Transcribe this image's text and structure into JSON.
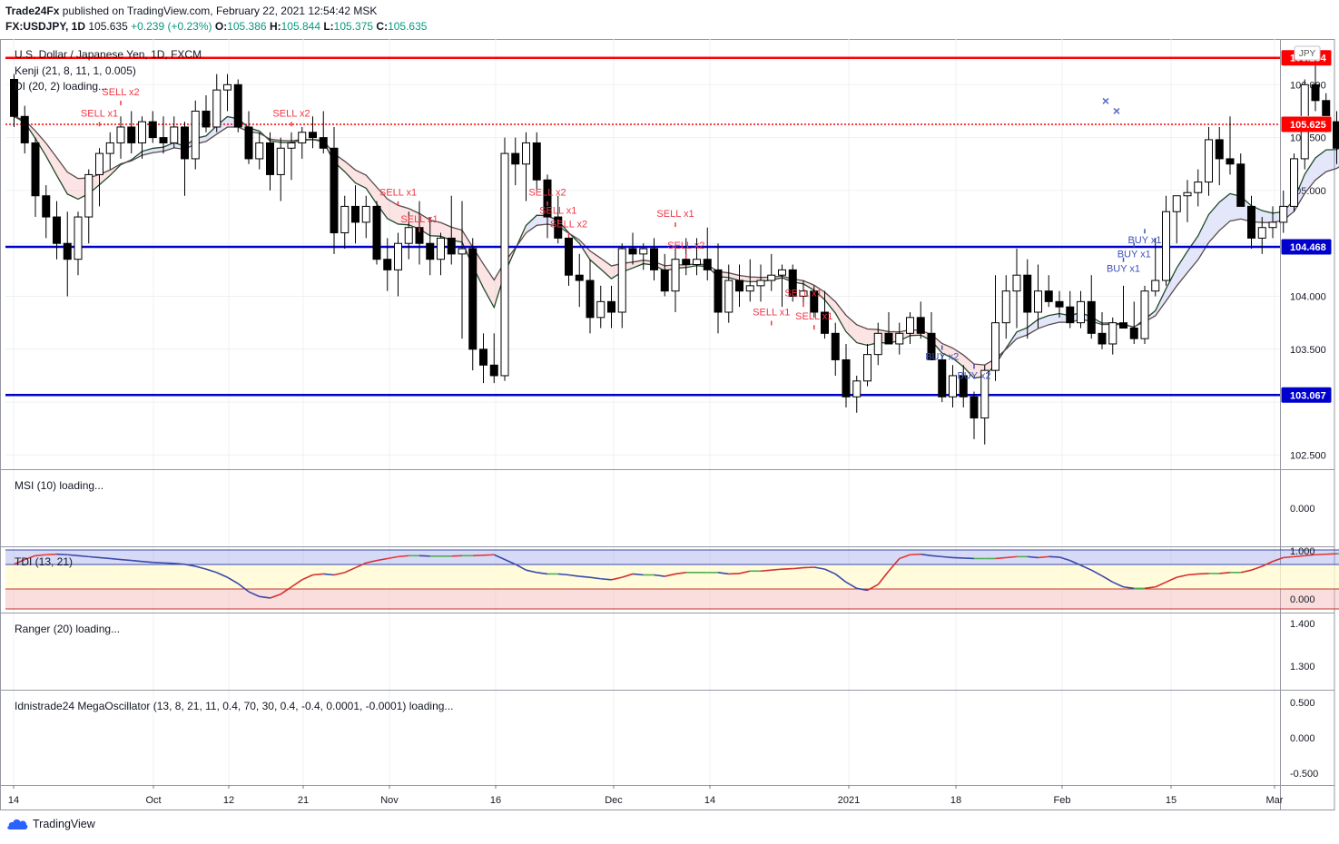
{
  "header": {
    "author": "Trade24Fx",
    "published": "published on TradingView.com, February 22, 2021 12:54:42 MSK",
    "symbol": "FX:USDJPY, 1D",
    "last": "105.635",
    "change": "+0.239 (+0.23%)",
    "o_label": "O:",
    "o": "105.386",
    "h_label": "H:",
    "h": "105.844",
    "l_label": "L:",
    "l": "105.375",
    "c_label": "C:",
    "c": "105.635"
  },
  "footer": {
    "brand": "TradingView"
  },
  "colors": {
    "up": "#ffffff",
    "down": "#000000",
    "grid": "#eef0f3",
    "red_line": "#ff0000",
    "blue_line": "#0000cd",
    "sell_text": "#f23645",
    "buy_text": "#3f51b5"
  },
  "chart_data": [
    {
      "type": "candlestick",
      "title": "U.S. Dollar / Japanese Yen, 1D, FXCM",
      "currency_badge": "JPY",
      "indicators": [
        "Kenji (21, 8, 11, 1, 0.005)",
        "DI (20, 2) loading..."
      ],
      "ylim": [
        102.35,
        106.35
      ],
      "yticks": [
        "106.000",
        "105.500",
        "105.000",
        "104.000",
        "103.500",
        "102.500"
      ],
      "price_labels": [
        {
          "value": 106.254,
          "text": "106.254",
          "color": "#ff0000"
        },
        {
          "value": 105.635,
          "text": "105.635",
          "color": "#ffffff"
        },
        {
          "value": 105.625,
          "text": "105.625",
          "color": "#ff0000"
        },
        {
          "value": 104.468,
          "text": "104.468",
          "color": "#0000cd"
        },
        {
          "value": 103.067,
          "text": "103.067",
          "color": "#0000cd"
        }
      ],
      "hlines": [
        {
          "value": 106.254,
          "color": "#ff0000",
          "style": "solid"
        },
        {
          "value": 105.625,
          "color": "#ff0000",
          "style": "dotted"
        },
        {
          "value": 104.468,
          "color": "#0000cd",
          "style": "solid"
        },
        {
          "value": 103.067,
          "color": "#0000cd",
          "style": "solid"
        }
      ],
      "xticks": [
        "14",
        "Oct",
        "12",
        "21",
        "Nov",
        "16",
        "Dec",
        "14",
        "2021",
        "18",
        "Feb",
        "15",
        "Mar"
      ],
      "ohlc": [
        [
          106.05,
          106.1,
          105.6,
          105.7
        ],
        [
          105.7,
          105.8,
          105.35,
          105.45
        ],
        [
          105.45,
          105.5,
          104.75,
          104.95
        ],
        [
          104.95,
          105.05,
          104.55,
          104.75
        ],
        [
          104.75,
          104.9,
          104.35,
          104.5
        ],
        [
          104.5,
          104.8,
          104.0,
          104.35
        ],
        [
          104.35,
          104.8,
          104.2,
          104.75
        ],
        [
          104.75,
          105.2,
          104.5,
          105.15
        ],
        [
          105.15,
          105.4,
          104.85,
          105.35
        ],
        [
          105.35,
          105.55,
          105.2,
          105.45
        ],
        [
          105.45,
          105.7,
          105.3,
          105.6
        ],
        [
          105.6,
          105.75,
          105.35,
          105.45
        ],
        [
          105.45,
          105.7,
          105.3,
          105.65
        ],
        [
          105.65,
          105.75,
          105.45,
          105.5
        ],
        [
          105.5,
          105.7,
          105.35,
          105.45
        ],
        [
          105.45,
          105.7,
          105.4,
          105.6
        ],
        [
          105.6,
          105.65,
          104.95,
          105.3
        ],
        [
          105.3,
          105.85,
          105.2,
          105.75
        ],
        [
          105.75,
          105.9,
          105.55,
          105.6
        ],
        [
          105.6,
          106.1,
          105.55,
          105.95
        ],
        [
          105.95,
          106.1,
          105.75,
          106.0
        ],
        [
          106.0,
          106.05,
          105.55,
          105.6
        ],
        [
          105.6,
          105.75,
          105.25,
          105.3
        ],
        [
          105.3,
          105.55,
          105.2,
          105.45
        ],
        [
          105.45,
          105.55,
          105.0,
          105.15
        ],
        [
          105.15,
          105.5,
          104.9,
          105.4
        ],
        [
          105.4,
          105.55,
          105.1,
          105.45
        ],
        [
          105.45,
          105.6,
          105.3,
          105.55
        ],
        [
          105.55,
          105.7,
          105.4,
          105.5
        ],
        [
          105.5,
          105.75,
          105.35,
          105.4
        ],
        [
          105.4,
          105.6,
          104.4,
          104.6
        ],
        [
          104.6,
          104.95,
          104.45,
          104.85
        ],
        [
          104.85,
          105.05,
          104.5,
          104.7
        ],
        [
          104.7,
          104.95,
          104.55,
          104.85
        ],
        [
          104.85,
          104.9,
          104.3,
          104.35
        ],
        [
          104.35,
          104.55,
          104.05,
          104.25
        ],
        [
          104.25,
          104.6,
          104.0,
          104.5
        ],
        [
          104.5,
          104.8,
          104.35,
          104.65
        ],
        [
          104.65,
          104.9,
          104.3,
          104.5
        ],
        [
          104.5,
          104.75,
          104.2,
          104.35
        ],
        [
          104.35,
          104.6,
          104.2,
          104.55
        ],
        [
          104.55,
          104.95,
          104.3,
          104.4
        ],
        [
          104.4,
          104.9,
          103.6,
          104.45
        ],
        [
          104.45,
          104.55,
          103.3,
          103.5
        ],
        [
          103.5,
          103.65,
          103.18,
          103.35
        ],
        [
          103.35,
          103.65,
          103.18,
          103.25
        ],
        [
          103.25,
          105.5,
          103.2,
          105.35
        ],
        [
          105.35,
          105.5,
          105.05,
          105.25
        ],
        [
          105.25,
          105.55,
          104.9,
          105.45
        ],
        [
          105.45,
          105.55,
          105.0,
          105.1
        ],
        [
          105.1,
          105.15,
          104.55,
          104.75
        ],
        [
          104.75,
          104.95,
          104.5,
          104.55
        ],
        [
          104.55,
          104.6,
          104.1,
          104.2
        ],
        [
          104.2,
          104.4,
          103.9,
          104.15
        ],
        [
          104.15,
          104.35,
          103.65,
          103.8
        ],
        [
          103.8,
          104.1,
          103.7,
          103.95
        ],
        [
          103.95,
          104.1,
          103.7,
          103.85
        ],
        [
          103.85,
          104.5,
          103.7,
          104.45
        ],
        [
          104.45,
          104.6,
          104.3,
          104.4
        ],
        [
          104.4,
          104.5,
          104.25,
          104.45
        ],
        [
          104.45,
          104.55,
          104.15,
          104.25
        ],
        [
          104.25,
          104.4,
          104.0,
          104.05
        ],
        [
          104.05,
          104.45,
          103.85,
          104.35
        ],
        [
          104.35,
          104.55,
          104.2,
          104.3
        ],
        [
          104.3,
          104.55,
          104.2,
          104.35
        ],
        [
          104.35,
          104.65,
          104.15,
          104.25
        ],
        [
          104.25,
          104.5,
          103.65,
          103.85
        ],
        [
          103.85,
          104.3,
          103.75,
          104.15
        ],
        [
          104.15,
          104.3,
          103.9,
          104.05
        ],
        [
          104.05,
          104.35,
          103.95,
          104.1
        ],
        [
          104.1,
          104.3,
          103.95,
          104.15
        ],
        [
          104.15,
          104.4,
          104.05,
          104.2
        ],
        [
          104.2,
          104.3,
          103.9,
          104.25
        ],
        [
          104.25,
          104.3,
          103.95,
          104.0
        ],
        [
          104.0,
          104.15,
          103.9,
          104.05
        ],
        [
          104.05,
          104.1,
          103.8,
          103.85
        ],
        [
          103.85,
          104.05,
          103.6,
          103.65
        ],
        [
          103.65,
          103.75,
          103.25,
          103.4
        ],
        [
          103.4,
          103.55,
          102.95,
          103.05
        ],
        [
          103.05,
          103.25,
          102.9,
          103.2
        ],
        [
          103.2,
          103.55,
          103.15,
          103.45
        ],
        [
          103.45,
          103.75,
          103.35,
          103.65
        ],
        [
          103.65,
          103.85,
          103.55,
          103.55
        ],
        [
          103.55,
          103.75,
          103.45,
          103.65
        ],
        [
          103.65,
          103.85,
          103.55,
          103.8
        ],
        [
          103.8,
          103.95,
          103.6,
          103.65
        ],
        [
          103.65,
          103.85,
          103.4,
          103.4
        ],
        [
          103.4,
          103.45,
          103.0,
          103.05
        ],
        [
          103.05,
          103.35,
          102.95,
          103.25
        ],
        [
          103.25,
          103.35,
          102.95,
          103.05
        ],
        [
          103.05,
          103.1,
          102.65,
          102.85
        ],
        [
          102.85,
          103.35,
          102.6,
          103.3
        ],
        [
          103.3,
          104.2,
          103.2,
          103.75
        ],
        [
          103.75,
          104.2,
          103.6,
          104.05
        ],
        [
          104.05,
          104.45,
          103.7,
          104.2
        ],
        [
          104.2,
          104.35,
          103.6,
          103.85
        ],
        [
          103.85,
          104.3,
          103.7,
          104.05
        ],
        [
          104.05,
          104.2,
          103.9,
          103.95
        ],
        [
          103.95,
          104.05,
          103.8,
          103.9
        ],
        [
          103.9,
          104.05,
          103.7,
          103.75
        ],
        [
          103.75,
          104.05,
          103.7,
          103.95
        ],
        [
          103.95,
          104.2,
          103.6,
          103.65
        ],
        [
          103.65,
          103.85,
          103.5,
          103.55
        ],
        [
          103.55,
          103.8,
          103.45,
          103.75
        ],
        [
          103.75,
          104.1,
          103.7,
          103.7
        ],
        [
          103.7,
          103.95,
          103.55,
          103.6
        ],
        [
          103.6,
          104.1,
          103.55,
          104.05
        ],
        [
          104.05,
          104.55,
          104.0,
          104.15
        ],
        [
          104.15,
          104.95,
          104.1,
          104.8
        ],
        [
          104.8,
          104.95,
          104.5,
          104.95
        ],
        [
          104.95,
          105.1,
          104.7,
          104.98
        ],
        [
          104.98,
          105.2,
          104.85,
          105.08
        ],
        [
          105.08,
          105.6,
          104.95,
          105.48
        ],
        [
          105.48,
          105.6,
          105.05,
          105.3
        ],
        [
          105.3,
          105.7,
          105.15,
          105.25
        ],
        [
          105.25,
          105.35,
          104.85,
          104.85
        ],
        [
          104.85,
          104.95,
          104.45,
          104.55
        ],
        [
          104.55,
          104.75,
          104.4,
          104.65
        ],
        [
          104.65,
          104.85,
          104.55,
          104.7
        ],
        [
          104.7,
          105.0,
          104.6,
          104.85
        ],
        [
          104.85,
          105.35,
          104.8,
          105.3
        ],
        [
          105.3,
          106.05,
          105.2,
          106.0
        ],
        [
          106.0,
          106.22,
          105.75,
          105.85
        ],
        [
          105.85,
          105.92,
          105.55,
          105.65
        ],
        [
          105.65,
          105.75,
          105.25,
          105.4
        ],
        [
          105.4,
          105.84,
          105.38,
          105.64
        ]
      ],
      "signals": [
        {
          "i": 8,
          "text": "SELL x1",
          "side": "sell",
          "level": 105.7
        },
        {
          "i": 10,
          "text": "SELL x2",
          "side": "sell",
          "level": 105.9
        },
        {
          "i": 26,
          "text": "SELL x2",
          "side": "sell",
          "level": 105.7
        },
        {
          "i": 36,
          "text": "SELL x1",
          "side": "sell",
          "level": 104.95
        },
        {
          "i": 38,
          "text": "SELL x1",
          "side": "sell",
          "level": 104.7
        },
        {
          "i": 50,
          "text": "SELL x2",
          "side": "sell",
          "level": 104.95
        },
        {
          "i": 51,
          "text": "SELL x1",
          "side": "sell",
          "level": 104.78
        },
        {
          "i": 52,
          "text": "SELL x2",
          "side": "sell",
          "level": 104.65
        },
        {
          "i": 62,
          "text": "SELL x1",
          "side": "sell",
          "level": 104.75
        },
        {
          "i": 63,
          "text": "SELL x2",
          "side": "sell",
          "level": 104.45
        },
        {
          "i": 71,
          "text": "SELL x1",
          "side": "sell",
          "level": 103.82
        },
        {
          "i": 74,
          "text": "SELL x1",
          "side": "sell",
          "level": 104.0
        },
        {
          "i": 75,
          "text": "SELL x1",
          "side": "sell",
          "level": 103.78
        },
        {
          "i": 87,
          "text": "BUY x2",
          "side": "buy",
          "level": 103.4
        },
        {
          "i": 90,
          "text": "BUY x2",
          "side": "buy",
          "level": 103.22
        },
        {
          "i": 104,
          "text": "BUY x1",
          "side": "buy",
          "level": 104.23
        },
        {
          "i": 105,
          "text": "BUY x1",
          "side": "buy",
          "level": 104.37
        },
        {
          "i": 106,
          "text": "BUY x1",
          "side": "buy",
          "level": 104.5
        }
      ]
    },
    {
      "type": "line",
      "title": "MSI (10) loading...",
      "yticks": [
        "0.000"
      ]
    },
    {
      "type": "line",
      "title": "TDI (13, 21)",
      "ylim": [
        -0.22,
        1.02
      ],
      "yticks": [
        "1.000",
        "0.000"
      ],
      "values": [
        0.72,
        0.82,
        0.9,
        0.92,
        0.93,
        0.92,
        0.9,
        0.88,
        0.86,
        0.84,
        0.82,
        0.8,
        0.78,
        0.76,
        0.75,
        0.74,
        0.72,
        0.68,
        0.62,
        0.55,
        0.45,
        0.32,
        0.15,
        0.05,
        0.02,
        0.1,
        0.25,
        0.4,
        0.5,
        0.52,
        0.5,
        0.55,
        0.65,
        0.75,
        0.8,
        0.84,
        0.88,
        0.9,
        0.9,
        0.89,
        0.89,
        0.89,
        0.9,
        0.9,
        0.91,
        0.92,
        0.82,
        0.72,
        0.6,
        0.55,
        0.52,
        0.52,
        0.5,
        0.47,
        0.45,
        0.42,
        0.4,
        0.45,
        0.52,
        0.5,
        0.5,
        0.47,
        0.52,
        0.55,
        0.55,
        0.55,
        0.55,
        0.52,
        0.53,
        0.58,
        0.58,
        0.6,
        0.62,
        0.63,
        0.65,
        0.66,
        0.62,
        0.52,
        0.35,
        0.22,
        0.18,
        0.3,
        0.58,
        0.84,
        0.92,
        0.93,
        0.9,
        0.88,
        0.86,
        0.85,
        0.84,
        0.84,
        0.84,
        0.86,
        0.88,
        0.88,
        0.86,
        0.88,
        0.87,
        0.8,
        0.7,
        0.6,
        0.48,
        0.35,
        0.25,
        0.22,
        0.22,
        0.25,
        0.35,
        0.45,
        0.5,
        0.52,
        0.53,
        0.53,
        0.55,
        0.55,
        0.6,
        0.68,
        0.78,
        0.86,
        0.88,
        0.9,
        0.92,
        0.93,
        0.94,
        0.94,
        0.92,
        0.9,
        0.88,
        0.88,
        0.89,
        0.9,
        0.91,
        0.91,
        0.9
      ]
    },
    {
      "type": "line",
      "title": "Ranger (20) loading...",
      "yticks": [
        "1.400",
        "1.300"
      ]
    },
    {
      "type": "line",
      "title": "Idnistrade24 MegaOscillator (13, 8, 21, 11, 0.4, 70, 30, 0.4, -0.4, 0.0001, -0.0001) loading...",
      "yticks": [
        "0.500",
        "0.000",
        "-0.500"
      ]
    }
  ]
}
